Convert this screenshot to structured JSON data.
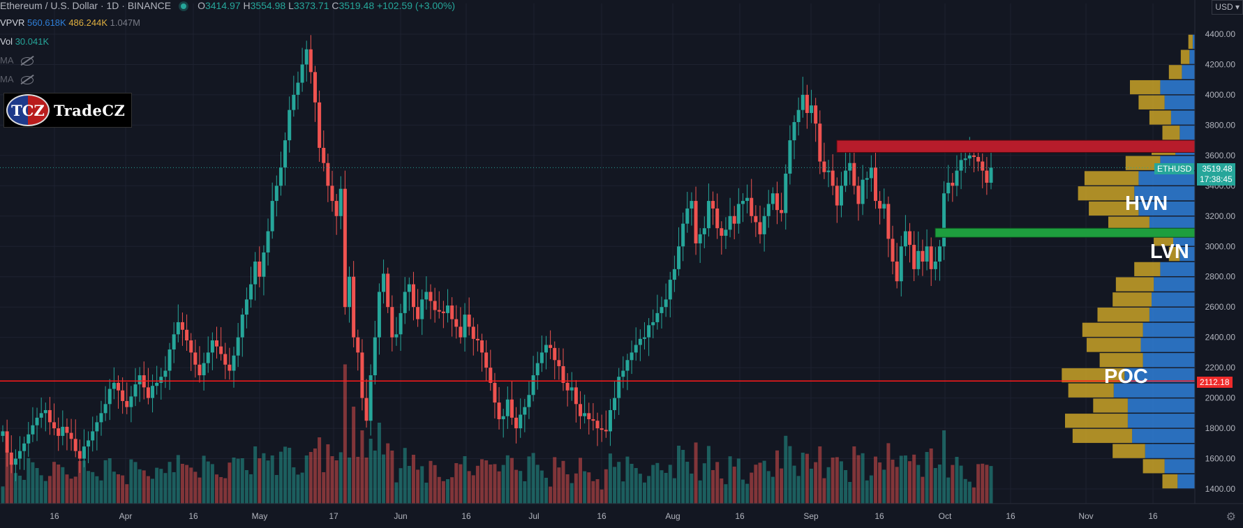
{
  "header": {
    "symbol": "Ethereum / U.S. Dollar · 1D · BINANCE",
    "o_label": "O",
    "o_value": "3414.97",
    "h_label": "H",
    "h_value": "3554.98",
    "l_label": "L",
    "l_value": "3373.71",
    "c_label": "C",
    "c_value": "3519.48",
    "change": "+102.59 (+3.00%)"
  },
  "indicators": {
    "vpvr_label": "VPVR",
    "vpvr_v1": "560.618K",
    "vpvr_v2": "486.244K",
    "vpvr_v3": "1.047M",
    "vol_label": "Vol",
    "vol_value": "30.041K",
    "ma1_label": "MA",
    "ma2_label": "MA"
  },
  "logo": {
    "mark": "TCZ",
    "name": "TradeCZ"
  },
  "annotations": {
    "hvn": "HVN",
    "lvn": "LVN",
    "poc": "POC"
  },
  "price_axis": {
    "currency": "USD",
    "ticks": [
      "4400.00",
      "4200.00",
      "4000.00",
      "3800.00",
      "3600.00",
      "3400.00",
      "3200.00",
      "3000.00",
      "2800.00",
      "2600.00",
      "2400.00",
      "2200.00",
      "2000.00",
      "1800.00",
      "1600.00",
      "1400.00"
    ],
    "last_symbol": "ETHUSD",
    "last_price": "3519.48",
    "countdown": "17:38:45",
    "poc_price": "2112.18"
  },
  "time_axis": [
    "16",
    "Apr",
    "16",
    "May",
    "17",
    "Jun",
    "16",
    "Jul",
    "16",
    "Aug",
    "16",
    "Sep",
    "16",
    "Oct",
    "16",
    "Nov",
    "16"
  ],
  "colors": {
    "up": "#26a69a",
    "down": "#ef5350",
    "background": "#131722",
    "poc_line": "#ff1a1a",
    "resistance_zone": "#b71c2b",
    "support_zone": "#1e9e3e",
    "vp_up": "#2f7fd8",
    "vp_down": "#c9a227"
  },
  "chart_data": {
    "type": "candlestick",
    "symbol": "ETHUSD",
    "interval": "1D",
    "ylim": [
      1350,
      4500
    ],
    "close_series": [
      1780,
      1640,
      1560,
      1600,
      1650,
      1700,
      1760,
      1820,
      1870,
      1900,
      1920,
      1840,
      1800,
      1750,
      1810,
      1770,
      1730,
      1650,
      1600,
      1680,
      1720,
      1780,
      1840,
      1900,
      1960,
      2060,
      2100,
      2050,
      1980,
      1940,
      2010,
      2090,
      2150,
      2070,
      2000,
      2080,
      2100,
      2140,
      2180,
      2320,
      2420,
      2500,
      2450,
      2380,
      2300,
      2220,
      2150,
      2230,
      2300,
      2380,
      2340,
      2290,
      2220,
      2180,
      2280,
      2400,
      2550,
      2650,
      2750,
      2900,
      2800,
      2960,
      3100,
      3300,
      3400,
      3520,
      3700,
      3900,
      4000,
      4080,
      4200,
      4300,
      4150,
      3950,
      3650,
      3550,
      3400,
      3300,
      3200,
      3380,
      2600,
      2800,
      2400,
      2300,
      2000,
      1850,
      2150,
      2400,
      2700,
      2820,
      2600,
      2400,
      2420,
      2560,
      2700,
      2750,
      2600,
      2520,
      2650,
      2700,
      2640,
      2580,
      2570,
      2560,
      2610,
      2520,
      2470,
      2400,
      2550,
      2470,
      2390,
      2380,
      2300,
      2200,
      2100,
      1970,
      1860,
      1880,
      1990,
      1870,
      1800,
      1890,
      1940,
      2020,
      2150,
      2230,
      2300,
      2350,
      2330,
      2250,
      2210,
      2100,
      2050,
      2070,
      1960,
      1880,
      1900,
      1860,
      1850,
      1800,
      1790,
      1780,
      1920,
      2000,
      2140,
      2180,
      2250,
      2300,
      2350,
      2390,
      2400,
      2480,
      2500,
      2560,
      2600,
      2650,
      2780,
      2850,
      3000,
      3150,
      3250,
      3300,
      3020,
      3080,
      3120,
      3300,
      3250,
      3120,
      3070,
      3110,
      3200,
      3150,
      3280,
      3300,
      3320,
      3200,
      3160,
      3080,
      3200,
      3280,
      3350,
      3240,
      3220,
      3480,
      3700,
      3820,
      3900,
      4000,
      3880,
      3930,
      3810,
      3560,
      3490,
      3500,
      3400,
      3270,
      3400,
      3500,
      3550,
      3400,
      3280,
      3440,
      3450,
      3520,
      3300,
      3250,
      3280,
      3050,
      2900,
      2770,
      3000,
      3100,
      3010,
      2850,
      2970,
      2900,
      3000,
      2850,
      2900,
      3000,
      3350,
      3420,
      3400,
      3500,
      3570,
      3580,
      3600,
      3590,
      3560,
      3500,
      3420,
      3519.48
    ],
    "poc_price": 2112.18,
    "resistance_zone": [
      3620,
      3700
    ],
    "support_zone": [
      3060,
      3120
    ],
    "volume_profile": {
      "bin_prices": [
        4350,
        4250,
        4150,
        4050,
        3950,
        3850,
        3750,
        3650,
        3550,
        3450,
        3350,
        3250,
        3150,
        3050,
        2950,
        2850,
        2750,
        2650,
        2550,
        2450,
        2350,
        2250,
        2150,
        2050,
        1950,
        1850,
        1750,
        1650,
        1550,
        1450
      ],
      "up_values": [
        2,
        5,
        12,
        32,
        28,
        22,
        14,
        18,
        32,
        52,
        56,
        52,
        42,
        20,
        14,
        32,
        38,
        40,
        42,
        48,
        50,
        48,
        65,
        75,
        62,
        62,
        58,
        46,
        28,
        16
      ],
      "down_values": [
        4,
        8,
        12,
        28,
        24,
        20,
        16,
        22,
        32,
        50,
        52,
        46,
        38,
        18,
        10,
        24,
        35,
        36,
        48,
        56,
        50,
        40,
        58,
        42,
        32,
        58,
        55,
        30,
        20,
        14
      ]
    },
    "annotations": [
      "HVN",
      "LVN",
      "POC"
    ]
  }
}
